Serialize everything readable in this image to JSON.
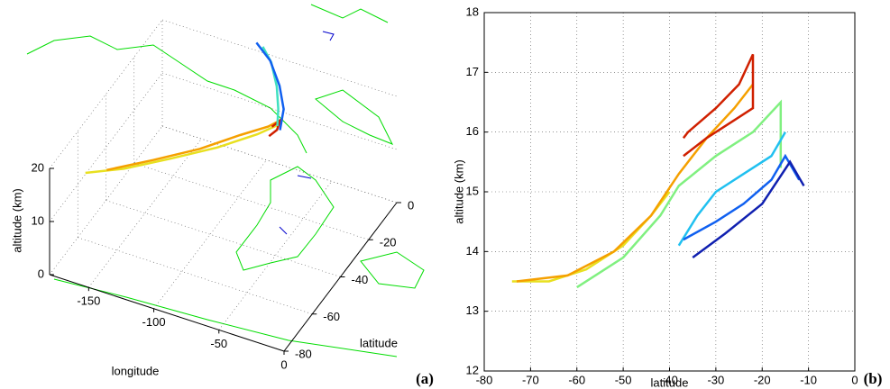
{
  "chart_data": [
    {
      "type": "line3d",
      "panel_label": "(a)",
      "xlabel": "longitude",
      "ylabel": "latitude",
      "zlabel": "altitude (km)",
      "xlim": [
        -180,
        0
      ],
      "xticks": [
        -150,
        -100,
        -50,
        0
      ],
      "ylim": [
        -80,
        0
      ],
      "yticks": [
        0,
        -20,
        -40,
        -60,
        -80
      ],
      "zlim": [
        0,
        20
      ],
      "zticks": [
        0,
        10,
        20
      ],
      "grid": true,
      "series": [
        {
          "color": "#e8e020",
          "lon": [
            -172,
            -150,
            -125,
            -100,
            -80,
            -70
          ],
          "lat": [
            -62,
            -55,
            -45,
            -35,
            -25,
            -18
          ],
          "alt": [
            13.5,
            13.6,
            14.0,
            14.6,
            15.2,
            15.5
          ]
        },
        {
          "color": "#f5a000",
          "lon": [
            -160,
            -135,
            -110,
            -90,
            -75,
            -68
          ],
          "lat": [
            -58,
            -48,
            -38,
            -28,
            -22,
            -18
          ],
          "alt": [
            13.6,
            14.0,
            14.6,
            15.3,
            16.0,
            16.6
          ]
        },
        {
          "color": "#d02000",
          "lon": [
            -72,
            -68,
            -66,
            -70
          ],
          "lat": [
            -22,
            -20,
            -24,
            -26
          ],
          "alt": [
            16.2,
            17.0,
            16.8,
            16.0
          ]
        },
        {
          "color": "#40e0c0",
          "lon": [
            -70,
            -78,
            -90,
            -105,
            -118
          ],
          "lat": [
            -20,
            -12,
            -2,
            8,
            14
          ],
          "alt": [
            15.8,
            15.6,
            15.4,
            15.2,
            15.0
          ]
        },
        {
          "color": "#1060f0",
          "lon": [
            -68,
            -76,
            -90,
            -108,
            -125
          ],
          "lat": [
            -20,
            -10,
            0,
            10,
            16
          ],
          "alt": [
            15.2,
            15.0,
            14.8,
            14.6,
            14.5
          ]
        }
      ]
    },
    {
      "type": "line",
      "panel_label": "(b)",
      "xlabel": "latitude",
      "ylabel": "altitude (km)",
      "xlim": [
        -80,
        0
      ],
      "xticks": [
        -80,
        -70,
        -60,
        -50,
        -40,
        -30,
        -20,
        -10,
        0
      ],
      "ylim": [
        12,
        18
      ],
      "yticks": [
        12,
        13,
        14,
        15,
        16,
        17,
        18
      ],
      "grid": true,
      "series": [
        {
          "color": "#e8e020",
          "x": [
            -74,
            -66,
            -58,
            -50,
            -44,
            -40
          ],
          "values": [
            13.5,
            13.5,
            13.7,
            14.1,
            14.6,
            15.0
          ]
        },
        {
          "color": "#f5a000",
          "x": [
            -73,
            -62,
            -52,
            -44,
            -38,
            -32,
            -26,
            -22
          ],
          "values": [
            13.5,
            13.6,
            14.0,
            14.6,
            15.3,
            15.9,
            16.4,
            16.8
          ]
        },
        {
          "color": "#d02000",
          "x": [
            -37,
            -36,
            -30,
            -25,
            -22,
            -22,
            -26,
            -32,
            -37
          ],
          "values": [
            15.9,
            16.0,
            16.4,
            16.8,
            17.3,
            16.4,
            16.2,
            15.9,
            15.6
          ]
        },
        {
          "color": "#80f080",
          "x": [
            -60,
            -50,
            -42,
            -38,
            -30,
            -22,
            -16,
            -16
          ],
          "values": [
            13.4,
            13.9,
            14.6,
            15.1,
            15.6,
            16.0,
            16.5,
            15.4
          ]
        },
        {
          "color": "#20c0f0",
          "x": [
            -38,
            -34,
            -30,
            -24,
            -18,
            -15
          ],
          "values": [
            14.1,
            14.6,
            15.0,
            15.3,
            15.6,
            16.0
          ]
        },
        {
          "color": "#1060f0",
          "x": [
            -37,
            -30,
            -24,
            -18,
            -15,
            -12
          ],
          "values": [
            14.2,
            14.5,
            14.8,
            15.2,
            15.6,
            15.2
          ]
        },
        {
          "color": "#1020b0",
          "x": [
            -35,
            -28,
            -20,
            -14,
            -11
          ],
          "values": [
            13.9,
            14.3,
            14.8,
            15.5,
            15.1
          ]
        }
      ]
    }
  ]
}
